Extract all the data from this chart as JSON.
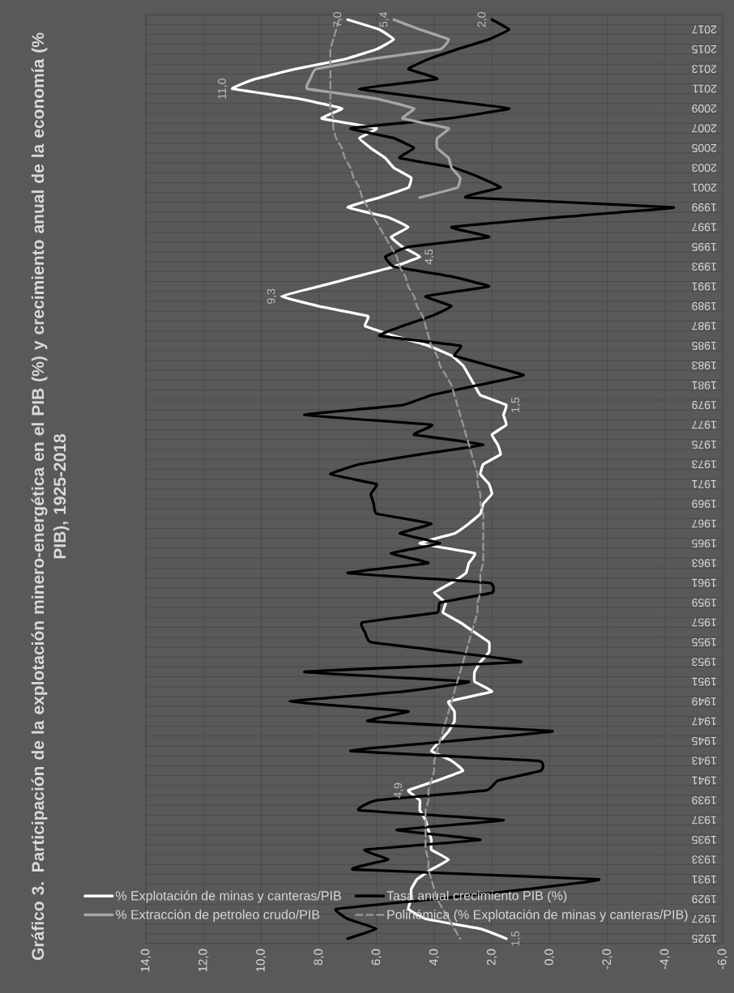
{
  "chart_data": {
    "type": "line",
    "title": "Gráfico 3. Participación de la explotación minero-energética en el PIB (%) y crecimiento anual de la economía (% PIB), 1925-2018",
    "orientation": "horizontal",
    "categories": [
      null,
      "2017",
      null,
      "2015",
      null,
      "2013",
      null,
      "2011",
      null,
      "2009",
      null,
      "2007",
      null,
      "2005",
      null,
      "2003",
      null,
      "2001",
      null,
      "1999",
      null,
      "1997",
      null,
      "1995",
      null,
      "1993",
      null,
      "1991",
      null,
      "1989",
      null,
      "1987",
      null,
      "1985",
      null,
      "1983",
      null,
      "1981",
      null,
      "1979",
      null,
      "1977",
      null,
      "1975",
      null,
      "1973",
      null,
      "1971",
      null,
      "1969",
      null,
      "1967",
      null,
      "1965",
      null,
      "1963",
      null,
      "1961",
      null,
      "1959",
      null,
      "1957",
      null,
      "1955",
      null,
      "1953",
      null,
      "1951",
      null,
      "1949",
      null,
      "1947",
      null,
      "1945",
      null,
      "1943",
      null,
      "1941",
      null,
      "1939",
      null,
      "1937",
      null,
      "1935",
      null,
      "1933",
      null,
      "1931",
      null,
      "1929",
      null,
      "1927",
      null,
      "1925"
    ],
    "xlim": [
      14,
      -6
    ],
    "xticks": [
      {
        "value": 14,
        "label": "14,0"
      },
      {
        "value": 12,
        "label": "12,0"
      },
      {
        "value": 10,
        "label": "10,0"
      },
      {
        "value": 8,
        "label": "8,0"
      },
      {
        "value": 6,
        "label": "6,0"
      },
      {
        "value": 4,
        "label": "4,0"
      },
      {
        "value": 2,
        "label": "2,0"
      },
      {
        "value": 0,
        "label": "0,0"
      },
      {
        "value": -2,
        "label": "-2,0"
      },
      {
        "value": -4,
        "label": "-4,0"
      },
      {
        "value": -6,
        "label": "-6,0"
      }
    ],
    "grid": true,
    "legend": "left",
    "series": [
      {
        "name": "% Explotación de minas y canteras/PIB",
        "color": "#ffffff",
        "values": [
          7.0,
          5.9,
          5.4,
          6.0,
          7.1,
          8.8,
          10.2,
          11.0,
          8.7,
          7.2,
          7.9,
          6.0,
          6.6,
          6.2,
          5.7,
          5.4,
          4.8,
          4.9,
          5.9,
          7.0,
          5.6,
          4.9,
          5.5,
          5.1,
          4.5,
          5.4,
          6.7,
          8.0,
          9.3,
          8.0,
          6.3,
          6.4,
          5.4,
          4.2,
          3.4,
          3.0,
          2.8,
          2.6,
          2.4,
          1.5,
          1.6,
          1.5,
          2.0,
          1.8,
          1.7,
          2.3,
          2.4,
          2.1,
          2.0,
          2.3,
          2.4,
          2.8,
          3.3,
          4.5,
          2.6,
          2.8,
          2.9,
          3.4,
          4.0,
          3.6,
          3.7,
          3.1,
          2.6,
          2.1,
          2.1,
          2.4,
          2.6,
          2.6,
          2.0,
          3.5,
          3.3,
          3.3,
          3.5,
          3.8,
          4.1,
          3.4,
          3.0,
          3.9,
          4.9,
          4.5,
          4.5,
          4.3,
          4.2,
          4.1,
          4.1,
          3.5,
          4.1,
          4.6,
          4.8,
          4.8,
          4.9,
          4.3,
          2.4,
          1.5
        ],
        "value_labels": [
          "7,0",
          null,
          null,
          null,
          null,
          null,
          null,
          "11,0",
          null,
          null,
          null,
          null,
          null,
          null,
          null,
          null,
          null,
          null,
          null,
          null,
          null,
          null,
          null,
          null,
          "4,5",
          null,
          null,
          null,
          "9,3",
          null,
          null,
          null,
          null,
          null,
          null,
          null,
          null,
          null,
          null,
          "1,5",
          null,
          null,
          null,
          null,
          null,
          null,
          null,
          null,
          null,
          null,
          null,
          null,
          null,
          null,
          null,
          null,
          null,
          null,
          null,
          null,
          null,
          null,
          null,
          null,
          null,
          null,
          null,
          null,
          null,
          null,
          null,
          null,
          null,
          null,
          null,
          null,
          null,
          null,
          "4,9",
          null,
          null,
          null,
          null,
          null,
          null,
          null,
          null,
          null,
          null,
          null,
          null,
          null,
          null,
          "1,5"
        ]
      },
      {
        "name": "Tasa anual crecimiento PIB (%)",
        "color": "#000000",
        "values": [
          2.0,
          1.4,
          2.1,
          3.2,
          4.2,
          4.9,
          3.9,
          6.6,
          4.1,
          1.4,
          3.5,
          6.9,
          5.4,
          4.7,
          5.2,
          3.3,
          2.4,
          1.7,
          2.9,
          -4.3,
          -0.3,
          3.4,
          2.1,
          4.9,
          5.7,
          5.4,
          3.4,
          2.1,
          4.3,
          3.4,
          4.1,
          5.1,
          5.9,
          3.1,
          3.3,
          2.1,
          0.9,
          2.5,
          4.1,
          5.1,
          8.5,
          4.1,
          4.7,
          2.3,
          4.5,
          6.6,
          7.6,
          6.0,
          6.2,
          6.1,
          6.0,
          4.1,
          5.2,
          3.8,
          5.5,
          4.2,
          7.0,
          2.1,
          2.0,
          3.8,
          3.9,
          6.5,
          6.4,
          6.2,
          3.4,
          1.0,
          8.5,
          2.8,
          5.1,
          9.0,
          4.9,
          6.3,
          -0.1,
          3.4,
          6.9,
          0.4,
          0.3,
          1.8,
          2.2,
          6.0,
          6.6,
          1.6,
          5.3,
          2.4,
          6.4,
          5.6,
          6.8,
          -1.7,
          0.8,
          4.0,
          7.4,
          7.0,
          6.0,
          7.0
        ],
        "value_labels": [
          "2,0",
          null,
          null,
          null,
          null,
          null,
          null,
          null,
          null,
          null,
          null,
          null,
          null,
          null,
          null,
          null,
          null,
          null,
          null,
          null,
          null,
          null,
          null,
          null,
          null,
          null,
          null,
          null,
          null,
          null,
          null,
          null,
          null,
          null,
          null,
          null,
          null,
          null,
          null,
          null,
          null,
          null,
          null,
          null,
          null,
          null,
          null,
          null,
          null,
          null,
          null,
          null,
          null,
          null,
          null,
          null,
          null,
          null,
          null,
          null,
          null,
          null,
          null,
          null,
          null,
          null,
          null,
          null,
          null,
          null,
          null,
          null,
          null,
          null,
          null,
          null,
          null,
          null,
          null,
          null,
          null,
          null,
          null,
          null,
          null,
          null,
          null,
          null,
          null,
          null,
          null,
          null,
          null,
          null
        ]
      },
      {
        "name": "% Extracción de petroleo crudo/PIB",
        "color": "#a6a6a6",
        "values": [
          5.4,
          4.5,
          3.5,
          3.8,
          6.2,
          8.1,
          8.3,
          8.4,
          6.0,
          4.7,
          5.1,
          3.5,
          3.9,
          3.9,
          3.5,
          3.4,
          3.1,
          3.2,
          4.5,
          null,
          null,
          null,
          null,
          null,
          null,
          null,
          null,
          null,
          null,
          null,
          null,
          null,
          null,
          null,
          null,
          null,
          null,
          null,
          null,
          null,
          null,
          null,
          null,
          null,
          null,
          null,
          null,
          null,
          null,
          null,
          null,
          null,
          null,
          null,
          null,
          null,
          null,
          null,
          null,
          null,
          null,
          null,
          null,
          null,
          null,
          null,
          null,
          null,
          null,
          null,
          null,
          null,
          null,
          null,
          null,
          null,
          null,
          null,
          null,
          null,
          null,
          null,
          null,
          null,
          null,
          null,
          null,
          null,
          null,
          null,
          null,
          null,
          null,
          null
        ],
        "value_labels": [
          "5,4",
          null,
          null,
          null,
          null,
          null,
          null,
          null,
          null,
          null,
          null,
          null,
          null,
          null,
          null,
          null,
          null,
          null,
          null,
          null,
          null,
          null,
          null,
          null,
          null,
          null,
          null,
          null,
          null,
          null,
          null,
          null,
          null,
          null,
          null,
          null,
          null,
          null,
          null,
          null,
          null,
          null,
          null,
          null,
          null,
          null,
          null,
          null,
          null,
          null,
          null,
          null,
          null,
          null,
          null,
          null,
          null,
          null,
          null,
          null,
          null,
          null,
          null,
          null,
          null,
          null,
          null,
          null,
          null,
          null,
          null,
          null,
          null,
          null,
          null,
          null,
          null,
          null,
          null,
          null,
          null,
          null,
          null,
          null,
          null,
          null,
          null,
          null,
          null,
          null,
          null,
          null,
          null,
          null
        ]
      },
      {
        "name": "Polinómica (% Explotación de minas y canteras/PIB)",
        "type": "line",
        "color": "#969696",
        "line_style": "dashed",
        "values": [
          7.3,
          7.4,
          7.5,
          7.6,
          7.6,
          7.6,
          7.6,
          7.6,
          7.6,
          7.6,
          7.5,
          7.5,
          7.4,
          7.2,
          7.1,
          6.9,
          6.8,
          6.6,
          6.5,
          6.3,
          6.1,
          5.9,
          5.7,
          5.5,
          5.3,
          5.2,
          5.0,
          4.9,
          4.7,
          4.6,
          4.4,
          4.3,
          4.2,
          4.1,
          3.9,
          3.8,
          3.6,
          3.4,
          3.3,
          3.2,
          3.1,
          3.0,
          2.9,
          2.8,
          2.7,
          2.6,
          2.5,
          2.5,
          2.4,
          2.4,
          2.3,
          2.3,
          2.3,
          2.3,
          2.3,
          2.3,
          2.4,
          2.4,
          2.4,
          2.5,
          2.5,
          2.6,
          2.7,
          2.8,
          2.9,
          3.0,
          3.1,
          3.2,
          3.3,
          3.4,
          3.5,
          3.6,
          3.7,
          3.8,
          3.9,
          4.0,
          4.0,
          4.1,
          4.2,
          4.2,
          4.3,
          4.3,
          4.3,
          4.3,
          4.3,
          4.2,
          4.2,
          4.1,
          4.0,
          3.9,
          3.7,
          3.5,
          3.3,
          3.1
        ]
      }
    ]
  }
}
